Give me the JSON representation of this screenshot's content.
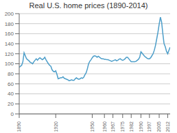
{
  "chart_data": {
    "type": "line",
    "title": "Real U.S. home prices (1890-2014)",
    "color": "#4d9ec9",
    "grid": true,
    "xlim": [
      1890,
      2014
    ],
    "ylim": [
      0,
      200
    ],
    "xticks": [
      1890,
      1920,
      1950,
      1960,
      1967,
      1975,
      1982,
      1990,
      1997,
      2005,
      2012
    ],
    "yticks": [
      0,
      20,
      40,
      60,
      80,
      100,
      120,
      140,
      160,
      180,
      200
    ],
    "x": [
      1890,
      1891,
      1892,
      1893,
      1894,
      1895,
      1896,
      1897,
      1898,
      1899,
      1900,
      1901,
      1902,
      1903,
      1904,
      1905,
      1906,
      1907,
      1908,
      1909,
      1910,
      1911,
      1912,
      1913,
      1914,
      1915,
      1916,
      1917,
      1918,
      1919,
      1920,
      1921,
      1922,
      1923,
      1924,
      1925,
      1926,
      1927,
      1928,
      1929,
      1930,
      1931,
      1932,
      1933,
      1934,
      1935,
      1936,
      1937,
      1938,
      1939,
      1940,
      1941,
      1942,
      1943,
      1944,
      1945,
      1946,
      1947,
      1948,
      1949,
      1950,
      1951,
      1952,
      1953,
      1954,
      1955,
      1956,
      1957,
      1958,
      1959,
      1960,
      1961,
      1962,
      1963,
      1964,
      1965,
      1966,
      1967,
      1968,
      1969,
      1970,
      1971,
      1972,
      1973,
      1974,
      1975,
      1976,
      1977,
      1978,
      1979,
      1980,
      1981,
      1982,
      1983,
      1984,
      1985,
      1986,
      1987,
      1988,
      1989,
      1990,
      1991,
      1992,
      1993,
      1994,
      1995,
      1996,
      1997,
      1998,
      1999,
      2000,
      2001,
      2002,
      2003,
      2004,
      2005,
      2006,
      2007,
      2008,
      2009,
      2010,
      2011,
      2012,
      2013,
      2014
    ],
    "values": [
      93,
      95,
      97,
      104,
      122,
      116,
      110,
      108,
      106,
      103,
      102,
      100,
      104,
      107,
      110,
      107,
      110,
      112,
      110,
      108,
      110,
      113,
      108,
      104,
      100,
      97,
      95,
      88,
      85,
      84,
      86,
      79,
      70,
      71,
      72,
      72,
      74,
      71,
      70,
      69,
      68,
      66,
      67,
      68,
      67,
      67,
      70,
      72,
      70,
      69,
      70,
      72,
      71,
      73,
      78,
      82,
      90,
      100,
      105,
      108,
      112,
      115,
      116,
      115,
      113,
      115,
      113,
      111,
      110,
      110,
      109,
      109,
      108,
      108,
      107,
      106,
      105,
      106,
      107,
      108,
      106,
      107,
      109,
      110,
      108,
      107,
      108,
      110,
      113,
      113,
      110,
      107,
      104,
      104,
      104,
      104,
      105,
      107,
      109,
      113,
      124,
      121,
      118,
      115,
      113,
      111,
      110,
      110,
      112,
      116,
      120,
      127,
      137,
      150,
      163,
      179,
      193,
      183,
      160,
      140,
      134,
      125,
      120,
      127,
      133
    ]
  }
}
